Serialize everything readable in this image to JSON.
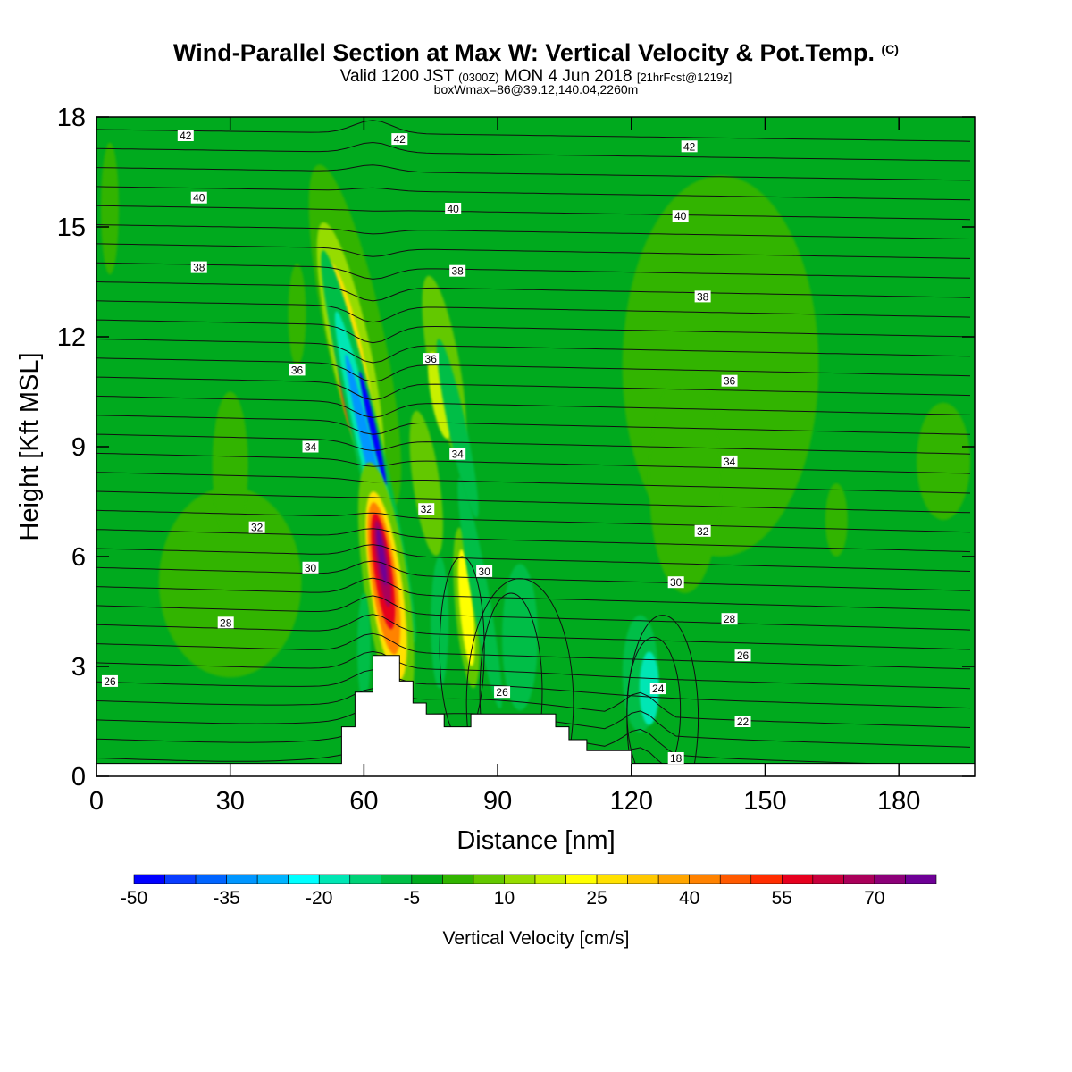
{
  "title": {
    "main": "Wind-Parallel Section at Max W: Vertical Velocity & Pot.Temp.",
    "copyright": "(C)",
    "valid_a": "Valid 1200 JST",
    "valid_utc": "(0300Z)",
    "valid_b": "MON 4 Jun 2018",
    "forecast": "[21hrFcst@1219z]",
    "box_info": "boxWmax=86@39.12,140.04,2260m"
  },
  "chart_data": {
    "type": "heatmap",
    "xlabel": "Distance [nm]",
    "ylabel": "Height [Kft MSL]",
    "xlim": [
      0,
      197
    ],
    "ylim": [
      0,
      18
    ],
    "x_ticks": [
      "0",
      "30",
      "60",
      "90",
      "120",
      "150",
      "180"
    ],
    "y_ticks": [
      "0",
      "3",
      "6",
      "9",
      "12",
      "15",
      "18"
    ],
    "colorbar": {
      "label": "Vertical Velocity [cm/s]",
      "tick_labels": [
        "-50",
        "-35",
        "-20",
        "-5",
        "10",
        "25",
        "40",
        "55",
        "70"
      ],
      "levels": [
        -50,
        -45,
        -40,
        -35,
        -30,
        -25,
        -20,
        -15,
        -10,
        -5,
        0,
        5,
        10,
        15,
        20,
        25,
        30,
        35,
        40,
        45,
        50,
        55,
        60,
        65,
        70,
        75
      ],
      "colors": [
        "#0000ff",
        "#0a3cff",
        "#0064ff",
        "#0096ff",
        "#00b4ff",
        "#00ffff",
        "#00e6b4",
        "#00d278",
        "#00be46",
        "#00aa1e",
        "#32b400",
        "#64c800",
        "#96dc00",
        "#c8f000",
        "#ffff00",
        "#ffe100",
        "#ffc800",
        "#ffa500",
        "#ff8200",
        "#ff5a00",
        "#ff2d00",
        "#e6001e",
        "#c8003c",
        "#aa005a",
        "#8c0078",
        "#6e0096"
      ]
    },
    "background_level": "-5",
    "w_features": [
      {
        "kind": "updraft",
        "x": 64,
        "y": 5.8,
        "peak": 75
      },
      {
        "kind": "updraft",
        "x": 60,
        "y": 10.5,
        "peak": 45
      },
      {
        "kind": "downdraft",
        "x": 61,
        "y": 9.0,
        "peak": -50
      },
      {
        "kind": "updraft",
        "x": 83,
        "y": 4.5,
        "peak": 20
      },
      {
        "kind": "updraft",
        "x": 77,
        "y": 10.5,
        "peak": 15
      },
      {
        "kind": "updraft",
        "x": 140,
        "y": 11.5,
        "peak": 5
      },
      {
        "kind": "updraft",
        "x": 30,
        "y": 5.5,
        "peak": 5
      }
    ],
    "theta_contour_labels": [
      {
        "text": "42",
        "x": 20,
        "y": 17.5
      },
      {
        "text": "42",
        "x": 68,
        "y": 17.4
      },
      {
        "text": "42",
        "x": 133,
        "y": 17.2
      },
      {
        "text": "40",
        "x": 23,
        "y": 15.8
      },
      {
        "text": "40",
        "x": 80,
        "y": 15.5
      },
      {
        "text": "40",
        "x": 131,
        "y": 15.3
      },
      {
        "text": "38",
        "x": 23,
        "y": 13.9
      },
      {
        "text": "38",
        "x": 81,
        "y": 13.8
      },
      {
        "text": "38",
        "x": 136,
        "y": 13.1
      },
      {
        "text": "36",
        "x": 45,
        "y": 11.1
      },
      {
        "text": "36",
        "x": 75,
        "y": 11.4
      },
      {
        "text": "36",
        "x": 142,
        "y": 10.8
      },
      {
        "text": "34",
        "x": 48,
        "y": 9.0
      },
      {
        "text": "34",
        "x": 81,
        "y": 8.8
      },
      {
        "text": "34",
        "x": 142,
        "y": 8.6
      },
      {
        "text": "32",
        "x": 36,
        "y": 6.8
      },
      {
        "text": "32",
        "x": 74,
        "y": 7.3
      },
      {
        "text": "32",
        "x": 136,
        "y": 6.7
      },
      {
        "text": "30",
        "x": 48,
        "y": 5.7
      },
      {
        "text": "30",
        "x": 87,
        "y": 5.6
      },
      {
        "text": "30",
        "x": 130,
        "y": 5.3
      },
      {
        "text": "28",
        "x": 29,
        "y": 4.2
      },
      {
        "text": "28",
        "x": 142,
        "y": 4.3
      },
      {
        "text": "26",
        "x": 3,
        "y": 2.6
      },
      {
        "text": "26",
        "x": 145,
        "y": 3.3
      },
      {
        "text": "26",
        "x": 91,
        "y": 2.3
      },
      {
        "text": "24",
        "x": 126,
        "y": 2.4
      },
      {
        "text": "22",
        "x": 145,
        "y": 1.5
      },
      {
        "text": "18",
        "x": 130,
        "y": 0.5
      }
    ],
    "terrain": [
      [
        0,
        0.35
      ],
      [
        55,
        0.35
      ],
      [
        55,
        1.35
      ],
      [
        58,
        1.35
      ],
      [
        58,
        2.3
      ],
      [
        62,
        2.3
      ],
      [
        62,
        3.3
      ],
      [
        68,
        3.3
      ],
      [
        68,
        2.6
      ],
      [
        71,
        2.6
      ],
      [
        71,
        2.0
      ],
      [
        74,
        2.0
      ],
      [
        74,
        1.7
      ],
      [
        78,
        1.7
      ],
      [
        78,
        1.35
      ],
      [
        84,
        1.35
      ],
      [
        84,
        1.7
      ],
      [
        103,
        1.7
      ],
      [
        103,
        1.35
      ],
      [
        106,
        1.35
      ],
      [
        106,
        1.0
      ],
      [
        110,
        1.0
      ],
      [
        110,
        0.7
      ],
      [
        120,
        0.7
      ],
      [
        120,
        0.35
      ],
      [
        197,
        0.35
      ]
    ]
  }
}
